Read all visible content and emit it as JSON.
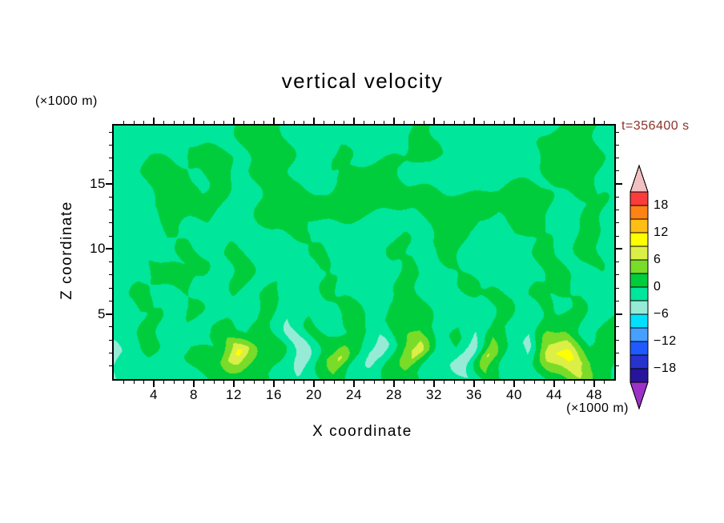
{
  "style": {
    "background": "#ffffff",
    "frame_color": "#000000",
    "text_color": "#000000",
    "time_label_color": "#8b3226"
  },
  "chart_data": {
    "type": "heatmap",
    "title": "vertical velocity",
    "xlabel": "X coordinate",
    "x_unit": "(×1000 m)",
    "zlabel": "Z coordinate",
    "z_unit": "(×1000 m)",
    "time_annotation": "t=356400 s",
    "x_axis": {
      "min": 0,
      "max": 50,
      "major_tick_step": 4,
      "minor_tick_step": 1,
      "tick_labels": [
        4,
        8,
        12,
        16,
        20,
        24,
        28,
        32,
        36,
        40,
        44,
        48
      ]
    },
    "z_axis": {
      "min": 0,
      "max": 19.5,
      "major_tick_step": 5,
      "minor_tick_step": 1,
      "tick_labels": [
        5,
        10,
        15
      ]
    },
    "contour_interval": 3,
    "level_min": -21,
    "level_max": 21,
    "grid_note": "values on grid: columns x=0..50 step 2 (×1000 m), rows z=20..0 step 2 (top to bottom); field is near zero aloft with weak positive (green) cells and bottom-level updraft plumes (yellow, ~+7..+11) at x≈12, 22, 30, 38, 44-46 separated by downdrafts (cyan, ~-4..-6) at x≈0, 18, 26, 34-36, 42",
    "values": [
      [
        -1.2,
        -1.2,
        -1.2,
        -1.2,
        -1.2,
        -1.2,
        -1.2,
        1.5,
        1.2,
        -1.2,
        -1.2,
        -1.2,
        -1.2,
        -1.2,
        -1.2,
        0.8,
        -1.2,
        -1.2,
        -1.2,
        -1.2,
        -1.2,
        -1.2,
        -1.2,
        1.5,
        1.0,
        -1.2
      ],
      [
        -1.2,
        -1.2,
        -1.2,
        -1.2,
        1.0,
        1.6,
        -1.2,
        2.0,
        1.8,
        -1.2,
        -1.2,
        1.2,
        -1.2,
        -1.2,
        -1.2,
        1.4,
        1.0,
        -1.2,
        -1.2,
        -1.2,
        -1.2,
        -1.2,
        1.0,
        2.0,
        1.2,
        -1.2
      ],
      [
        -1.2,
        -1.2,
        1.8,
        1.4,
        -1.2,
        1.5,
        -1.2,
        1.5,
        1.0,
        -1.2,
        -1.2,
        -1.2,
        1.6,
        1.0,
        1.2,
        -1.2,
        -1.2,
        -1.2,
        -1.2,
        -1.2,
        -1.2,
        -1.2,
        1.0,
        1.6,
        -1.2,
        -1.2
      ],
      [
        -1.2,
        -1.2,
        1.5,
        1.0,
        1.2,
        1.0,
        -1.2,
        -1.2,
        1.4,
        1.8,
        1.6,
        1.2,
        1.5,
        1.8,
        1.4,
        1.0,
        1.6,
        1.9,
        1.4,
        1.0,
        1.7,
        1.2,
        -1.2,
        -1.2,
        1.2,
        -1.2
      ],
      [
        -1.2,
        -1.2,
        -1.2,
        1.0,
        -1.2,
        -1.2,
        -1.2,
        -1.2,
        1.0,
        1.3,
        -1.2,
        -1.2,
        -1.2,
        -1.2,
        -1.2,
        -1.2,
        1.4,
        1.0,
        -1.2,
        -1.2,
        1.8,
        1.4,
        -1.2,
        -1.2,
        1.6,
        -1.2
      ],
      [
        -1.2,
        -1.2,
        -1.2,
        -1.2,
        1.4,
        -1.2,
        1.0,
        -1.2,
        -1.2,
        -1.2,
        1.2,
        -1.2,
        -1.2,
        -1.2,
        1.5,
        -1.2,
        -1.2,
        1.2,
        -1.2,
        -1.2,
        -1.2,
        -1.2,
        1.4,
        -1.2,
        1.3,
        -1.2
      ],
      [
        -1.2,
        -1.2,
        1.0,
        1.2,
        -1.2,
        -1.2,
        1.5,
        -1.2,
        -1.2,
        -1.2,
        -1.2,
        1.3,
        -1.2,
        -1.2,
        -1.2,
        1.2,
        -1.2,
        -1.2,
        1.3,
        -1.2,
        -1.2,
        -1.2,
        1.5,
        -1.2,
        -1.2,
        -1.2
      ],
      [
        -1.2,
        1.4,
        -1.2,
        -1.2,
        1.2,
        -1.2,
        -1.2,
        -1.2,
        1.4,
        -1.2,
        -1.2,
        -1.2,
        1.4,
        -1.2,
        -1.2,
        1.3,
        -1.2,
        -1.2,
        -1.2,
        1.4,
        -1.2,
        1.2,
        -1.2,
        1.0,
        -1.2,
        -1.2
      ],
      [
        -1.2,
        -1.2,
        1.2,
        -1.2,
        -1.2,
        -1.2,
        2.5,
        -1.2,
        1.0,
        -3.5,
        1.2,
        -1.2,
        1.0,
        -1.2,
        2.0,
        2.0,
        -1.2,
        1.0,
        -3.0,
        1.2,
        -1.2,
        -1.2,
        2.5,
        2.5,
        -1.2,
        1.2
      ],
      [
        -5.0,
        -2.0,
        1.5,
        -1.2,
        1.0,
        1.5,
        10.5,
        2.0,
        1.8,
        -6.0,
        1.0,
        6.8,
        -1.8,
        -5.0,
        2.0,
        8.5,
        -1.2,
        -2.0,
        -5.5,
        6.5,
        -1.2,
        -4.0,
        8.0,
        11.0,
        2.5,
        1.0
      ],
      [
        -3.0,
        -1.2,
        -1.2,
        -1.2,
        -1.2,
        1.0,
        2.0,
        1.0,
        -1.2,
        -3.0,
        -1.2,
        1.0,
        -1.2,
        -2.0,
        1.0,
        2.0,
        -1.2,
        -1.2,
        -2.5,
        1.0,
        -1.2,
        -1.5,
        2.0,
        2.5,
        1.0,
        -1.2
      ]
    ]
  },
  "colorbar": {
    "labels": [
      "18",
      "12",
      "6",
      "0",
      "−6",
      "−12",
      "−18"
    ],
    "colors_top_to_bottom": [
      "#fa3c3c",
      "#ff8214",
      "#ffbe14",
      "#ffff00",
      "#dcef46",
      "#78dc28",
      "#00cd3c",
      "#00e69b",
      "#96ebd7",
      "#00e1ff",
      "#46a0ff",
      "#1e5aff",
      "#2832cd",
      "#28149b"
    ],
    "top_arrow_color": "#f2c0c0",
    "bottom_arrow_color": "#9b32c8"
  }
}
